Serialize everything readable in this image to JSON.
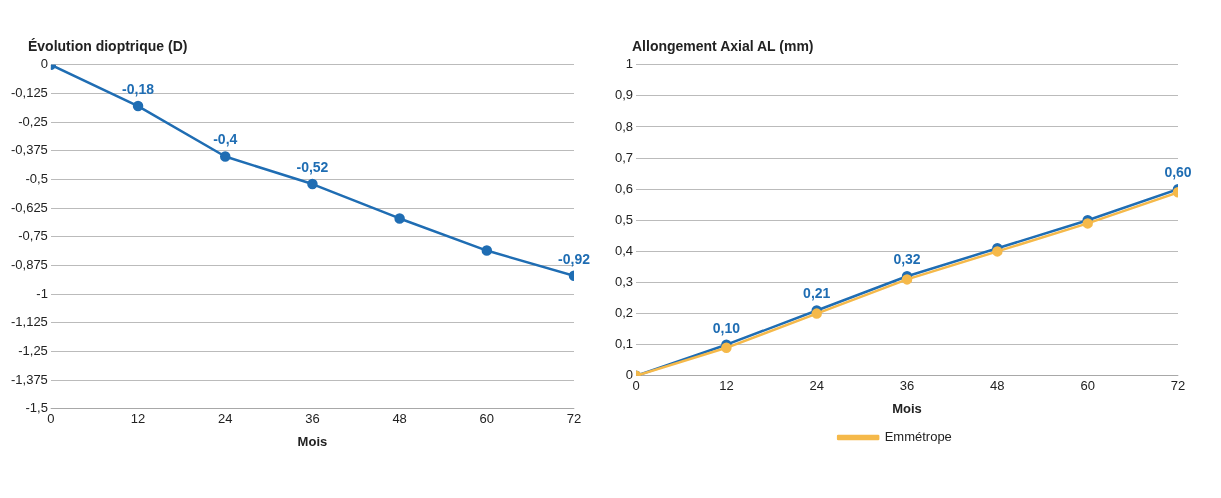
{
  "chart_data": [
    {
      "type": "line",
      "ylabel": "Évolution dioptrique (D)",
      "xlabel": "Mois",
      "x": [
        0,
        12,
        24,
        36,
        48,
        60,
        72
      ],
      "xlim": [
        0,
        72
      ],
      "xticks": [
        0,
        12,
        24,
        36,
        48,
        60,
        72
      ],
      "ylim": [
        -1.5,
        0
      ],
      "yticks": [
        {
          "value": 0,
          "label": "0"
        },
        {
          "value": -0.125,
          "label": "-0,125"
        },
        {
          "value": -0.25,
          "label": "-0,25"
        },
        {
          "value": -0.375,
          "label": "-0,375"
        },
        {
          "value": -0.5,
          "label": "-0,5"
        },
        {
          "value": -0.625,
          "label": "-0,625"
        },
        {
          "value": -0.75,
          "label": "-0,75"
        },
        {
          "value": -0.875,
          "label": "-0,875"
        },
        {
          "value": -1,
          "label": "-1"
        },
        {
          "value": -1.125,
          "label": "-1,125"
        },
        {
          "value": -1.25,
          "label": "-1,25"
        },
        {
          "value": -1.375,
          "label": "-1,375"
        },
        {
          "value": -1.5,
          "label": "-1,5"
        }
      ],
      "grid": "y",
      "marker": "circle",
      "series": [
        {
          "color": "#1f6db3",
          "values": [
            0,
            -0.18,
            -0.4,
            -0.52,
            -0.67,
            -0.81,
            -0.92
          ],
          "value_labels": [
            null,
            "-0,18",
            "-0,4",
            "-0,52",
            null,
            null,
            "-0,92"
          ]
        }
      ]
    },
    {
      "type": "line",
      "ylabel": "Allongement Axial AL (mm)",
      "xlabel": "Mois",
      "x": [
        0,
        12,
        24,
        36,
        48,
        60,
        72
      ],
      "xlim": [
        0,
        72
      ],
      "xticks": [
        0,
        12,
        24,
        36,
        48,
        60,
        72
      ],
      "ylim": [
        0,
        1
      ],
      "yticks": [
        {
          "value": 0,
          "label": "0"
        },
        {
          "value": 0.1,
          "label": "0,1"
        },
        {
          "value": 0.2,
          "label": "0,2"
        },
        {
          "value": 0.3,
          "label": "0,3"
        },
        {
          "value": 0.4,
          "label": "0,4"
        },
        {
          "value": 0.5,
          "label": "0,5"
        },
        {
          "value": 0.6,
          "label": "0,6"
        },
        {
          "value": 0.7,
          "label": "0,7"
        },
        {
          "value": 0.8,
          "label": "0,8"
        },
        {
          "value": 0.9,
          "label": "0,9"
        },
        {
          "value": 1,
          "label": "1"
        }
      ],
      "grid": "y",
      "marker": "circle",
      "legend": "bottom",
      "series": [
        {
          "color": "#f5b94a",
          "name": "Emmétrope",
          "values": [
            0,
            0.09,
            0.2,
            0.31,
            0.4,
            0.49,
            0.59
          ]
        },
        {
          "color": "#1f6db3",
          "values": [
            0,
            0.1,
            0.21,
            0.32,
            0.41,
            0.5,
            0.6
          ],
          "value_labels": [
            null,
            "0,10",
            "0,21",
            "0,32",
            null,
            null,
            "0,60"
          ]
        }
      ]
    }
  ]
}
